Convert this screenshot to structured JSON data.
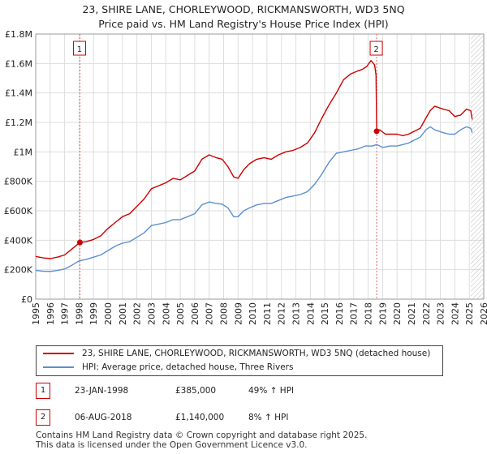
{
  "title_line1": "23, SHIRE LANE, CHORLEYWOOD, RICKMANSWORTH, WD3 5NQ",
  "title_line2": "Price paid vs. HM Land Registry's House Price Index (HPI)",
  "colors": {
    "property": "#cc0000",
    "hpi": "#5b8fd0",
    "marker_line": "#e06666",
    "grid": "#dddddd"
  },
  "chart_data": {
    "type": "line",
    "xlim": [
      1995,
      2026
    ],
    "ylim": [
      0,
      1800000
    ],
    "y_ticks": [
      {
        "value": 0,
        "label": "£0"
      },
      {
        "value": 200000,
        "label": "£200K"
      },
      {
        "value": 400000,
        "label": "£400K"
      },
      {
        "value": 600000,
        "label": "£600K"
      },
      {
        "value": 800000,
        "label": "£800K"
      },
      {
        "value": 1000000,
        "label": "£1M"
      },
      {
        "value": 1200000,
        "label": "£1.2M"
      },
      {
        "value": 1400000,
        "label": "£1.4M"
      },
      {
        "value": 1600000,
        "label": "£1.6M"
      },
      {
        "value": 1800000,
        "label": "£1.8M"
      }
    ],
    "x_ticks": [
      "1995",
      "1996",
      "1997",
      "1998",
      "1999",
      "2000",
      "2001",
      "2002",
      "2003",
      "2004",
      "2005",
      "2006",
      "2007",
      "2008",
      "2009",
      "2010",
      "2011",
      "2012",
      "2013",
      "2014",
      "2015",
      "2016",
      "2017",
      "2018",
      "2019",
      "2020",
      "2021",
      "2022",
      "2023",
      "2024",
      "2025",
      "2026"
    ],
    "series": [
      {
        "name": "23, SHIRE LANE, CHORLEYWOOD, RICKMANSWORTH, WD3 5NQ (detached house)",
        "color": "#cc0000",
        "x": [
          1995.0,
          1995.5,
          1996.0,
          1996.5,
          1997.0,
          1997.5,
          1998.06,
          1998.5,
          1999.0,
          1999.5,
          2000.0,
          2000.5,
          2001.0,
          2001.5,
          2002.0,
          2002.5,
          2003.0,
          2003.5,
          2004.0,
          2004.5,
          2005.0,
          2005.5,
          2006.0,
          2006.5,
          2007.0,
          2007.5,
          2007.9,
          2008.3,
          2008.7,
          2009.0,
          2009.4,
          2009.8,
          2010.3,
          2010.8,
          2011.3,
          2011.8,
          2012.3,
          2012.8,
          2013.3,
          2013.8,
          2014.3,
          2014.8,
          2015.3,
          2015.8,
          2016.3,
          2016.8,
          2017.3,
          2017.6,
          2017.9,
          2018.2,
          2018.45,
          2018.55,
          2018.59,
          2018.8,
          2019.2,
          2019.6,
          2020.0,
          2020.4,
          2020.8,
          2021.2,
          2021.6,
          2022.0,
          2022.3,
          2022.6,
          2022.9,
          2023.2,
          2023.6,
          2024.0,
          2024.4,
          2024.8,
          2025.1,
          2025.2
        ],
        "values": [
          290000,
          280000,
          275000,
          285000,
          300000,
          340000,
          385000,
          390000,
          405000,
          430000,
          480000,
          520000,
          560000,
          580000,
          630000,
          680000,
          750000,
          770000,
          790000,
          820000,
          810000,
          840000,
          870000,
          950000,
          980000,
          960000,
          950000,
          900000,
          830000,
          820000,
          880000,
          920000,
          950000,
          960000,
          950000,
          980000,
          1000000,
          1010000,
          1030000,
          1060000,
          1130000,
          1230000,
          1320000,
          1400000,
          1490000,
          1530000,
          1550000,
          1560000,
          1580000,
          1620000,
          1590000,
          1520000,
          1140000,
          1150000,
          1120000,
          1120000,
          1120000,
          1110000,
          1120000,
          1140000,
          1160000,
          1230000,
          1280000,
          1310000,
          1300000,
          1290000,
          1280000,
          1240000,
          1250000,
          1290000,
          1280000,
          1220000
        ]
      },
      {
        "name": "HPI: Average price, detached house, Three Rivers",
        "color": "#5b8fd0",
        "x": [
          1995.0,
          1995.5,
          1996.0,
          1996.5,
          1997.0,
          1997.5,
          1998.0,
          1998.5,
          1999.0,
          1999.5,
          2000.0,
          2000.5,
          2001.0,
          2001.5,
          2002.0,
          2002.5,
          2003.0,
          2003.5,
          2004.0,
          2004.5,
          2005.0,
          2005.5,
          2006.0,
          2006.5,
          2007.0,
          2007.5,
          2007.9,
          2008.3,
          2008.7,
          2009.0,
          2009.4,
          2009.8,
          2010.3,
          2010.8,
          2011.3,
          2011.8,
          2012.3,
          2012.8,
          2013.3,
          2013.8,
          2014.3,
          2014.8,
          2015.3,
          2015.8,
          2016.3,
          2016.8,
          2017.3,
          2017.8,
          2018.3,
          2018.6,
          2019.0,
          2019.5,
          2020.0,
          2020.4,
          2020.8,
          2021.2,
          2021.6,
          2022.0,
          2022.3,
          2022.6,
          2022.9,
          2023.2,
          2023.6,
          2024.0,
          2024.4,
          2024.8,
          2025.1,
          2025.2
        ],
        "values": [
          195000,
          190000,
          188000,
          195000,
          205000,
          230000,
          260000,
          270000,
          285000,
          300000,
          330000,
          360000,
          380000,
          390000,
          420000,
          450000,
          500000,
          510000,
          520000,
          540000,
          540000,
          560000,
          580000,
          640000,
          660000,
          650000,
          645000,
          620000,
          560000,
          560000,
          600000,
          620000,
          640000,
          650000,
          650000,
          670000,
          690000,
          700000,
          710000,
          730000,
          780000,
          850000,
          930000,
          990000,
          1000000,
          1010000,
          1020000,
          1040000,
          1040000,
          1050000,
          1030000,
          1040000,
          1040000,
          1050000,
          1060000,
          1080000,
          1100000,
          1150000,
          1170000,
          1150000,
          1140000,
          1130000,
          1120000,
          1120000,
          1150000,
          1170000,
          1160000,
          1130000
        ]
      }
    ],
    "annotations": [
      {
        "label": "1",
        "x": 1998.06,
        "value": 385000
      },
      {
        "label": "2",
        "x": 2018.59,
        "value": 1140000
      }
    ]
  },
  "legend": {
    "property_label": "23, SHIRE LANE, CHORLEYWOOD, RICKMANSWORTH, WD3 5NQ (detached house)",
    "hpi_label": "HPI: Average price, detached house, Three Rivers"
  },
  "sales": [
    {
      "num": "1",
      "date": "23-JAN-1998",
      "price": "£385,000",
      "hpi": "49% ↑ HPI"
    },
    {
      "num": "2",
      "date": "06-AUG-2018",
      "price": "£1,140,000",
      "hpi": "8% ↑ HPI"
    }
  ],
  "footer_line1": "Contains HM Land Registry data © Crown copyright and database right 2025.",
  "footer_line2": "This data is licensed under the Open Government Licence v3.0."
}
